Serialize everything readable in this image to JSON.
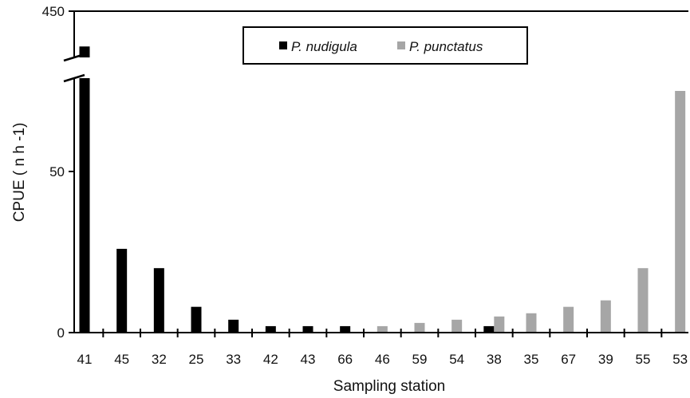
{
  "chart_data": {
    "type": "bar",
    "title": "",
    "xlabel": "Sampling station",
    "ylabel": "CPUE ( n h -1)",
    "categories": [
      "41",
      "45",
      "32",
      "25",
      "33",
      "42",
      "43",
      "66",
      "46",
      "59",
      "54",
      "38",
      "35",
      "67",
      "39",
      "55",
      "53"
    ],
    "series": [
      {
        "name": "P. nudigula",
        "color": "#000000",
        "values": [
          421,
          26,
          20,
          8,
          4,
          2,
          2,
          2,
          0,
          0,
          0,
          2,
          0,
          0,
          0,
          0,
          0
        ]
      },
      {
        "name": "P. punctatus",
        "color": "#a6a6a6",
        "values": [
          0,
          0,
          0,
          0,
          0,
          0,
          0,
          0,
          2,
          3,
          4,
          5,
          6,
          8,
          10,
          20,
          75
        ]
      }
    ],
    "y_ticks": [
      "0",
      "50",
      "450"
    ],
    "ylim": [
      0,
      450
    ],
    "axis_break": {
      "lower_range": [
        0,
        79
      ],
      "upper_range": [
        412,
        450
      ]
    },
    "grid": false,
    "legend_position": "top-center"
  }
}
